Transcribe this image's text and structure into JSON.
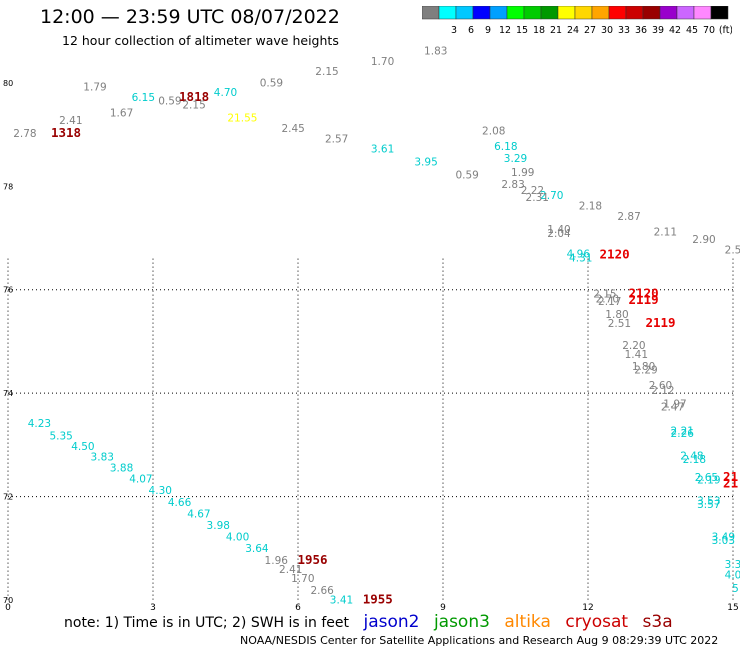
{
  "header": {
    "title": "12:00 — 23:59 UTC 08/07/2022",
    "subtitle": "12 hour collection of altimeter wave heights"
  },
  "legend": {
    "segments": [
      {
        "color": "#7f7f7f",
        "label": ""
      },
      {
        "color": "#00ffff",
        "label": "3"
      },
      {
        "color": "#00c8ff",
        "label": "6"
      },
      {
        "color": "#0000ff",
        "label": "9"
      },
      {
        "color": "#00a0ff",
        "label": "12"
      },
      {
        "color": "#00ff00",
        "label": "15"
      },
      {
        "color": "#00cc00",
        "label": "18"
      },
      {
        "color": "#009900",
        "label": "21"
      },
      {
        "color": "#ffff00",
        "label": "24"
      },
      {
        "color": "#ffd700",
        "label": "27"
      },
      {
        "color": "#ffa500",
        "label": "30"
      },
      {
        "color": "#ff0000",
        "label": "33"
      },
      {
        "color": "#cc0000",
        "label": "36"
      },
      {
        "color": "#990000",
        "label": "39"
      },
      {
        "color": "#9900cc",
        "label": "42"
      },
      {
        "color": "#cc66ff",
        "label": "45"
      },
      {
        "color": "#ff88ff",
        "label": "70"
      },
      {
        "color": "#000000",
        "label": "(ft)"
      }
    ]
  },
  "note": {
    "text": "note:  1) Time is in UTC; 2) SWH is in feet",
    "satellites": [
      {
        "name": "jason2",
        "color": "#0000cc"
      },
      {
        "name": "jason3",
        "color": "#009900"
      },
      {
        "name": "altika",
        "color": "#ff8800"
      },
      {
        "name": "cryosat",
        "color": "#cc0000"
      },
      {
        "name": "s3a",
        "color": "#990000"
      }
    ]
  },
  "footer": "NOAA/NESDIS Center for Satellite Applications and Research    Aug  9 08:29:39 UTC 2022",
  "chart_data": {
    "type": "scatter",
    "title": "12:00 — 23:59 UTC 08/07/2022",
    "subtitle": "12 hour collection of altimeter wave heights",
    "xlabel": "",
    "ylabel": "",
    "xlim": [
      0,
      15
    ],
    "ylim": [
      70,
      80.5
    ],
    "x_ticks": [
      "0",
      "3",
      "6",
      "9",
      "12",
      "15"
    ],
    "y_ticks": [
      {
        "value": 70,
        "label": "70"
      },
      {
        "value": 72,
        "label": "72"
      },
      {
        "value": 74,
        "label": "74"
      },
      {
        "value": 76,
        "label": "76"
      },
      {
        "value": 78,
        "label": "78"
      },
      {
        "value": 80,
        "label": "80"
      }
    ],
    "grid": true,
    "points": [
      {
        "x": 0.35,
        "y": 78.95,
        "label": "2.78",
        "color": "#808080"
      },
      {
        "x": 1.3,
        "y": 79.2,
        "label": "2.41",
        "color": "#808080"
      },
      {
        "x": 1.2,
        "y": 78.95,
        "label": "1318",
        "color": "#990000",
        "bold": true
      },
      {
        "x": 1.8,
        "y": 79.85,
        "label": "1.79",
        "color": "#808080"
      },
      {
        "x": 2.35,
        "y": 79.35,
        "label": "1.67",
        "color": "#808080"
      },
      {
        "x": 2.8,
        "y": 79.65,
        "label": "6.15",
        "color": "#00cccc"
      },
      {
        "x": 3.35,
        "y": 79.58,
        "label": "0.59",
        "color": "#808080"
      },
      {
        "x": 3.85,
        "y": 79.65,
        "label": "1818",
        "color": "#990000",
        "bold": true
      },
      {
        "x": 3.85,
        "y": 79.5,
        "label": "2.15",
        "color": "#808080"
      },
      {
        "x": 4.5,
        "y": 79.75,
        "label": "4.70",
        "color": "#00cccc"
      },
      {
        "x": 4.85,
        "y": 79.25,
        "label": "21.55",
        "color": "#ffff00"
      },
      {
        "x": 5.45,
        "y": 79.93,
        "label": "0.59",
        "color": "#808080"
      },
      {
        "x": 5.9,
        "y": 79.05,
        "label": "2.45",
        "color": "#808080"
      },
      {
        "x": 6.6,
        "y": 80.15,
        "label": "2.15",
        "color": "#808080"
      },
      {
        "x": 6.8,
        "y": 78.85,
        "label": "2.57",
        "color": "#808080"
      },
      {
        "x": 7.75,
        "y": 80.35,
        "label": "1.70",
        "color": "#808080"
      },
      {
        "x": 7.75,
        "y": 78.65,
        "label": "3.61",
        "color": "#00cccc"
      },
      {
        "x": 8.85,
        "y": 80.55,
        "label": "1.83",
        "color": "#808080"
      },
      {
        "x": 8.65,
        "y": 78.4,
        "label": "3.95",
        "color": "#00cccc"
      },
      {
        "x": 9.5,
        "y": 78.15,
        "label": "0.59",
        "color": "#808080"
      },
      {
        "x": 10.05,
        "y": 79.0,
        "label": "2.08",
        "color": "#808080"
      },
      {
        "x": 10.3,
        "y": 78.7,
        "label": "6.18",
        "color": "#00cccc"
      },
      {
        "x": 10.5,
        "y": 78.47,
        "label": "3.29",
        "color": "#00cccc"
      },
      {
        "x": 10.65,
        "y": 78.2,
        "label": "1.99",
        "color": "#808080"
      },
      {
        "x": 10.45,
        "y": 77.97,
        "label": "2.83",
        "color": "#808080"
      },
      {
        "x": 10.85,
        "y": 77.85,
        "label": "2.22",
        "color": "#808080"
      },
      {
        "x": 11.25,
        "y": 77.75,
        "label": "2.70",
        "color": "#00cccc"
      },
      {
        "x": 10.95,
        "y": 77.72,
        "label": "2.31",
        "color": "#808080"
      },
      {
        "x": 12.05,
        "y": 77.55,
        "label": "2.18",
        "color": "#808080"
      },
      {
        "x": 12.85,
        "y": 77.35,
        "label": "2.87",
        "color": "#808080"
      },
      {
        "x": 11.4,
        "y": 77.1,
        "label": "1.40",
        "color": "#808080"
      },
      {
        "x": 11.4,
        "y": 77.02,
        "label": "2.04",
        "color": "#808080"
      },
      {
        "x": 13.6,
        "y": 77.05,
        "label": "2.11",
        "color": "#808080"
      },
      {
        "x": 14.4,
        "y": 76.9,
        "label": "2.90",
        "color": "#808080"
      },
      {
        "x": 15.0,
        "y": 76.7,
        "label": "2.5",
        "color": "#808080"
      },
      {
        "x": 11.8,
        "y": 76.62,
        "label": "4.96",
        "color": "#00cccc"
      },
      {
        "x": 11.85,
        "y": 76.55,
        "label": "4.31",
        "color": "#00cccc"
      },
      {
        "x": 12.55,
        "y": 76.6,
        "label": "2120",
        "color": "#e60000",
        "bold": true
      },
      {
        "x": 12.35,
        "y": 75.85,
        "label": "2.15",
        "color": "#808080"
      },
      {
        "x": 12.4,
        "y": 75.75,
        "label": "2.70",
        "color": "#808080"
      },
      {
        "x": 12.45,
        "y": 75.7,
        "label": "2.17",
        "color": "#808080"
      },
      {
        "x": 13.15,
        "y": 75.85,
        "label": "2120",
        "color": "#e60000",
        "bold": true
      },
      {
        "x": 13.15,
        "y": 75.72,
        "label": "2119",
        "color": "#e60000",
        "bold": true
      },
      {
        "x": 12.6,
        "y": 75.45,
        "label": "1.80",
        "color": "#808080"
      },
      {
        "x": 12.65,
        "y": 75.28,
        "label": "2.51",
        "color": "#808080"
      },
      {
        "x": 13.5,
        "y": 75.28,
        "label": "2119",
        "color": "#e60000",
        "bold": true
      },
      {
        "x": 12.95,
        "y": 74.85,
        "label": "2.20",
        "color": "#808080"
      },
      {
        "x": 13.0,
        "y": 74.68,
        "label": "1.41",
        "color": "#808080"
      },
      {
        "x": 13.15,
        "y": 74.45,
        "label": "1.80",
        "color": "#808080"
      },
      {
        "x": 13.2,
        "y": 74.38,
        "label": "2.29",
        "color": "#808080"
      },
      {
        "x": 13.5,
        "y": 74.08,
        "label": "2.60",
        "color": "#808080"
      },
      {
        "x": 13.55,
        "y": 73.98,
        "label": "2.12",
        "color": "#808080"
      },
      {
        "x": 13.8,
        "y": 73.72,
        "label": "1.97",
        "color": "#808080"
      },
      {
        "x": 13.75,
        "y": 73.66,
        "label": "2.47",
        "color": "#808080"
      },
      {
        "x": 13.95,
        "y": 73.2,
        "label": "2.21",
        "color": "#00cccc"
      },
      {
        "x": 13.95,
        "y": 73.15,
        "label": "2.26",
        "color": "#00cccc"
      },
      {
        "x": 14.15,
        "y": 72.72,
        "label": "2.48",
        "color": "#00cccc"
      },
      {
        "x": 14.2,
        "y": 72.65,
        "label": "2.18",
        "color": "#00cccc"
      },
      {
        "x": 14.45,
        "y": 72.3,
        "label": "2.65",
        "color": "#00cccc"
      },
      {
        "x": 14.5,
        "y": 72.25,
        "label": "2.19",
        "color": "#00cccc"
      },
      {
        "x": 14.95,
        "y": 72.3,
        "label": "21",
        "color": "#e60000",
        "bold": true
      },
      {
        "x": 14.95,
        "y": 72.18,
        "label": "21",
        "color": "#e60000",
        "bold": true
      },
      {
        "x": 14.5,
        "y": 71.85,
        "label": "3.53",
        "color": "#00cccc"
      },
      {
        "x": 14.5,
        "y": 71.78,
        "label": "3.57",
        "color": "#00cccc"
      },
      {
        "x": 14.8,
        "y": 71.15,
        "label": "3.49",
        "color": "#00cccc"
      },
      {
        "x": 14.8,
        "y": 71.08,
        "label": "3.03",
        "color": "#00cccc"
      },
      {
        "x": 15.0,
        "y": 70.62,
        "label": "3.3",
        "color": "#00cccc"
      },
      {
        "x": 15.0,
        "y": 70.42,
        "label": "4.0",
        "color": "#00cccc"
      },
      {
        "x": 15.05,
        "y": 70.15,
        "label": "5",
        "color": "#00cccc"
      },
      {
        "x": 0.65,
        "y": 73.35,
        "label": "4.23",
        "color": "#00cccc"
      },
      {
        "x": 1.1,
        "y": 73.1,
        "label": "5.35",
        "color": "#00cccc"
      },
      {
        "x": 1.55,
        "y": 72.9,
        "label": "4.50",
        "color": "#00cccc"
      },
      {
        "x": 1.95,
        "y": 72.7,
        "label": "3.83",
        "color": "#00cccc"
      },
      {
        "x": 2.35,
        "y": 72.48,
        "label": "3.88",
        "color": "#00cccc"
      },
      {
        "x": 2.75,
        "y": 72.27,
        "label": "4.07",
        "color": "#00cccc"
      },
      {
        "x": 3.15,
        "y": 72.05,
        "label": "4.30",
        "color": "#00cccc"
      },
      {
        "x": 3.55,
        "y": 71.82,
        "label": "4.66",
        "color": "#00cccc"
      },
      {
        "x": 3.95,
        "y": 71.6,
        "label": "4.67",
        "color": "#00cccc"
      },
      {
        "x": 4.35,
        "y": 71.37,
        "label": "3.98",
        "color": "#00cccc"
      },
      {
        "x": 4.75,
        "y": 71.15,
        "label": "4.00",
        "color": "#00cccc"
      },
      {
        "x": 5.15,
        "y": 70.93,
        "label": "3.64",
        "color": "#00cccc"
      },
      {
        "x": 5.55,
        "y": 70.7,
        "label": "1.96",
        "color": "#808080"
      },
      {
        "x": 5.85,
        "y": 70.52,
        "label": "2.41",
        "color": "#808080"
      },
      {
        "x": 6.3,
        "y": 70.7,
        "label": "1956",
        "color": "#990000",
        "bold": true
      },
      {
        "x": 6.1,
        "y": 70.35,
        "label": "1.70",
        "color": "#808080"
      },
      {
        "x": 6.5,
        "y": 70.12,
        "label": "2.66",
        "color": "#808080"
      },
      {
        "x": 6.9,
        "y": 69.93,
        "label": "3.41",
        "color": "#00cccc"
      },
      {
        "x": 7.65,
        "y": 69.93,
        "label": "1955",
        "color": "#990000",
        "bold": true
      }
    ]
  }
}
